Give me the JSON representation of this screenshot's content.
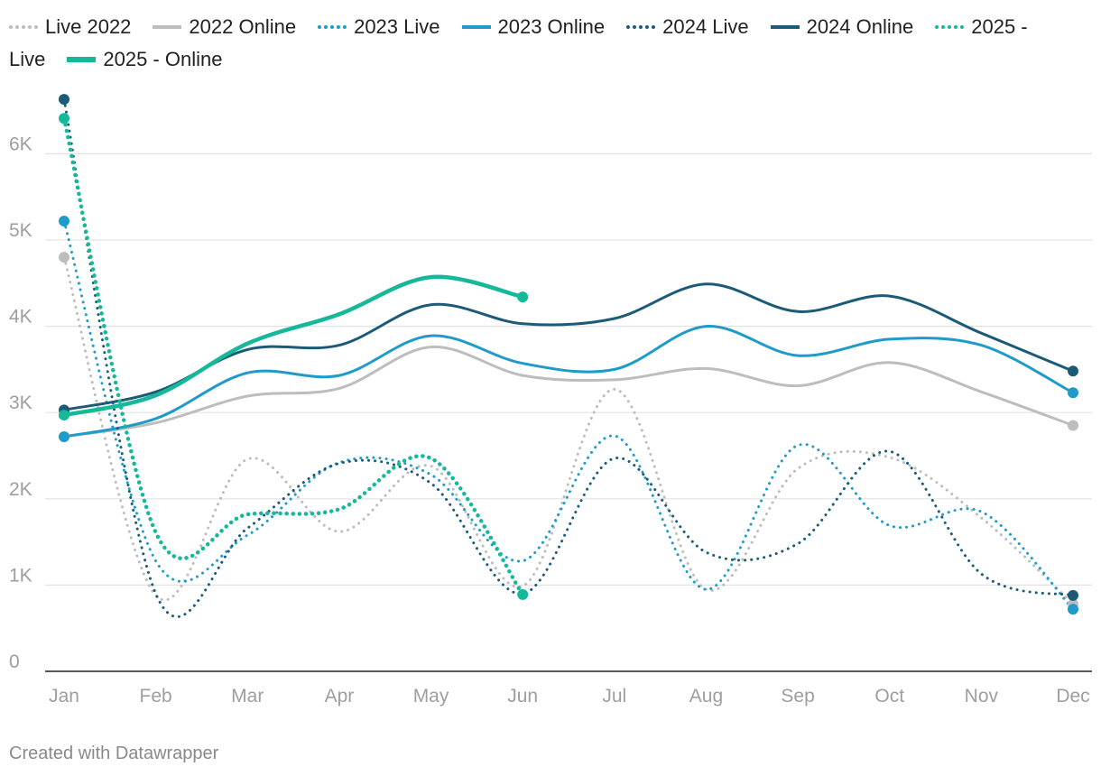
{
  "legend_rows": [
    [
      {
        "label": "Live 2022",
        "series": 0
      },
      {
        "label": "2022 Online",
        "series": 1
      },
      {
        "label": "2023 Live",
        "series": 2
      },
      {
        "label": "2023 Online",
        "series": 3
      },
      {
        "label": "2024 Live",
        "series": 4
      },
      {
        "label": "2024 Online",
        "series": 5
      },
      {
        "label": "2025 -",
        "series": 6
      }
    ],
    [
      {
        "label": "Live",
        "series": -1
      },
      {
        "label": "2025 - Online",
        "series": 7
      }
    ]
  ],
  "chart_data": {
    "type": "line",
    "categories": [
      "Jan",
      "Feb",
      "Mar",
      "Apr",
      "May",
      "Jun",
      "Jul",
      "Aug",
      "Sep",
      "Oct",
      "Nov",
      "Dec"
    ],
    "y_ticks": [
      {
        "value": 0,
        "label": "0"
      },
      {
        "value": 1000,
        "label": "1K"
      },
      {
        "value": 2000,
        "label": "2K"
      },
      {
        "value": 3000,
        "label": "3K"
      },
      {
        "value": 4000,
        "label": "4K"
      },
      {
        "value": 5000,
        "label": "5K"
      },
      {
        "value": 6000,
        "label": "6K"
      }
    ],
    "ylim": [
      0,
      7000
    ],
    "grid": true,
    "legend_position": "top",
    "series": [
      {
        "name": "Live 2022",
        "color": "#bdbdbd",
        "style": "dotted",
        "values": [
          4800,
          880,
          2460,
          1620,
          2380,
          990,
          3270,
          950,
          2350,
          2480,
          1780,
          780
        ]
      },
      {
        "name": "2022 Online",
        "color": "#bdbdbd",
        "style": "solid",
        "values": [
          2720,
          2880,
          3190,
          3280,
          3760,
          3430,
          3380,
          3510,
          3310,
          3580,
          3240,
          2850
        ]
      },
      {
        "name": "2023 Live",
        "color": "#1f9bc9",
        "style": "dotted",
        "values": [
          5220,
          1280,
          1580,
          2420,
          2280,
          1280,
          2730,
          950,
          2620,
          1690,
          1850,
          720
        ]
      },
      {
        "name": "2023 Online",
        "color": "#1f9bc9",
        "style": "solid",
        "values": [
          2720,
          2930,
          3460,
          3430,
          3890,
          3570,
          3500,
          4000,
          3660,
          3850,
          3780,
          3230
        ]
      },
      {
        "name": "2024 Live",
        "color": "#1b5b78",
        "style": "dotted",
        "values": [
          6630,
          900,
          1660,
          2410,
          2180,
          900,
          2470,
          1380,
          1480,
          2550,
          1130,
          880
        ]
      },
      {
        "name": "2024 Online",
        "color": "#1b5b78",
        "style": "solid",
        "values": [
          3030,
          3240,
          3730,
          3780,
          4250,
          4030,
          4090,
          4490,
          4170,
          4350,
          3920,
          3480
        ]
      },
      {
        "name": "2025 - Live",
        "color": "#16b89a",
        "style": "dotted",
        "values": [
          6410,
          1610,
          1820,
          1880,
          2470,
          890,
          null,
          null,
          null,
          null,
          null,
          null
        ]
      },
      {
        "name": "2025 - Online",
        "color": "#16b89a",
        "style": "solid-thick",
        "values": [
          2970,
          3200,
          3800,
          4140,
          4570,
          4340,
          null,
          null,
          null,
          null,
          null,
          null
        ]
      }
    ]
  },
  "footer": "Created with Datawrapper"
}
